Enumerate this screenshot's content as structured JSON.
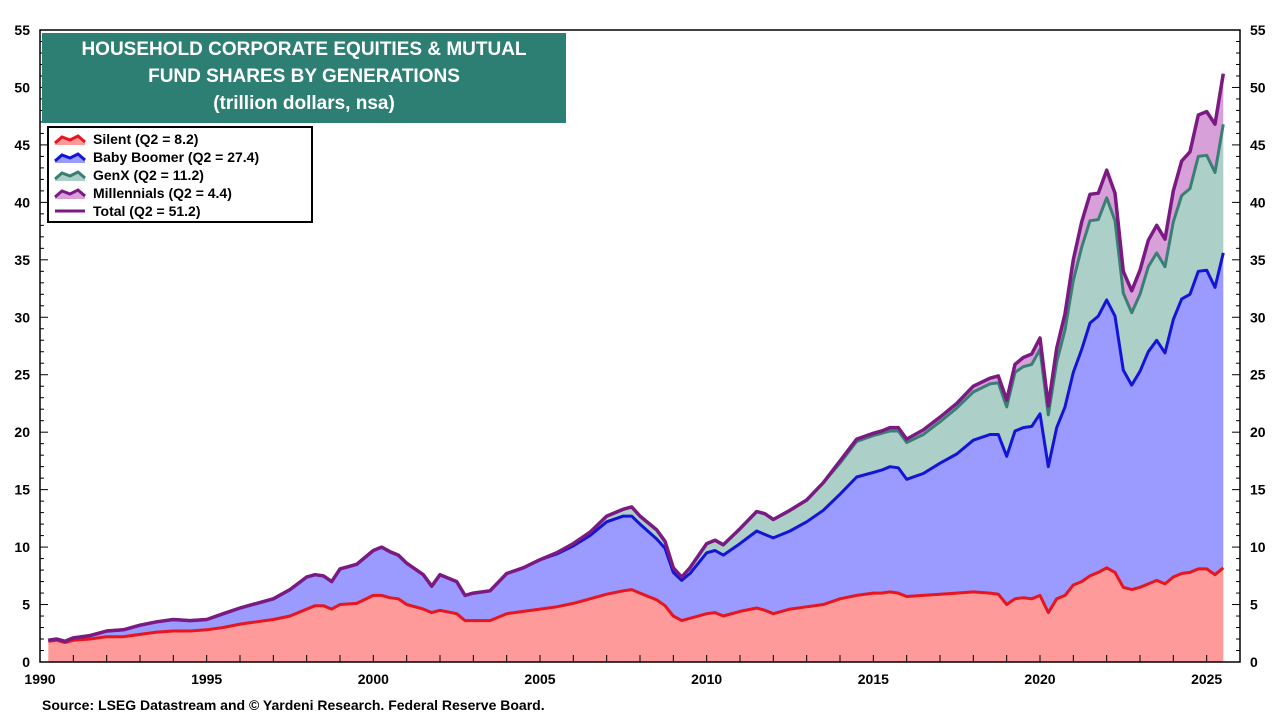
{
  "chart_data": {
    "type": "area",
    "title": "HOUSEHOLD CORPORATE EQUITIES & MUTUAL",
    "title_line2": "FUND SHARES BY GENERATIONS",
    "subtitle": "(trillion dollars, nsa)",
    "source": "Source: LSEG Datastream and © Yardeni Research. Federal Reserve Board.",
    "stacked": true,
    "xlim": [
      1990,
      2026
    ],
    "ylim": [
      0,
      55
    ],
    "x_ticks": [
      "1990",
      "1995",
      "2000",
      "2005",
      "2010",
      "2015",
      "2020",
      "2025"
    ],
    "y_ticks": [
      "0",
      "5",
      "10",
      "15",
      "20",
      "25",
      "30",
      "35",
      "40",
      "45",
      "50",
      "55"
    ],
    "grid": false,
    "legend_position": "top-left",
    "x": [
      1990.25,
      1990.5,
      1990.75,
      1991,
      1991.5,
      1992,
      1992.5,
      1993,
      1993.5,
      1994,
      1994.5,
      1995,
      1995.5,
      1996,
      1996.5,
      1997,
      1997.5,
      1998,
      1998.25,
      1998.5,
      1998.75,
      1999,
      1999.5,
      2000,
      2000.25,
      2000.5,
      2000.75,
      2001,
      2001.5,
      2001.75,
      2002,
      2002.5,
      2002.75,
      2003,
      2003.5,
      2004,
      2004.5,
      2005,
      2005.5,
      2006,
      2006.5,
      2007,
      2007.5,
      2007.75,
      2008,
      2008.5,
      2008.75,
      2009,
      2009.25,
      2009.5,
      2010,
      2010.25,
      2010.5,
      2011,
      2011.5,
      2011.75,
      2012,
      2012.5,
      2013,
      2013.5,
      2014,
      2014.5,
      2015,
      2015.25,
      2015.5,
      2015.75,
      2016,
      2016.5,
      2017,
      2017.5,
      2018,
      2018.5,
      2018.75,
      2019,
      2019.25,
      2019.5,
      2019.75,
      2020,
      2020.25,
      2020.5,
      2020.75,
      2021,
      2021.25,
      2021.5,
      2021.75,
      2022,
      2022.25,
      2022.5,
      2022.75,
      2023,
      2023.25,
      2023.5,
      2023.75,
      2024,
      2024.25,
      2024.5,
      2024.75,
      2025,
      2025.25,
      2025.5
    ],
    "series": [
      {
        "name": "Silent (Q2 = 8.2)",
        "color": "#ff9a9a",
        "line_color": "#e8141e",
        "values": [
          1.8,
          1.9,
          1.7,
          1.9,
          2.0,
          2.2,
          2.2,
          2.4,
          2.6,
          2.7,
          2.7,
          2.8,
          3.0,
          3.3,
          3.5,
          3.7,
          4.0,
          4.6,
          4.9,
          4.9,
          4.6,
          5.0,
          5.1,
          5.8,
          5.8,
          5.6,
          5.5,
          5.0,
          4.6,
          4.3,
          4.5,
          4.2,
          3.6,
          3.6,
          3.6,
          4.2,
          4.4,
          4.6,
          4.8,
          5.1,
          5.5,
          5.9,
          6.2,
          6.3,
          6.0,
          5.4,
          4.9,
          4.0,
          3.6,
          3.8,
          4.2,
          4.3,
          4.0,
          4.4,
          4.7,
          4.5,
          4.2,
          4.6,
          4.8,
          5.0,
          5.5,
          5.8,
          6.0,
          6.0,
          6.1,
          6.0,
          5.7,
          5.8,
          5.9,
          6.0,
          6.1,
          6.0,
          5.9,
          5.0,
          5.5,
          5.6,
          5.5,
          5.8,
          4.3,
          5.5,
          5.8,
          6.7,
          7.0,
          7.5,
          7.8,
          8.2,
          7.8,
          6.5,
          6.3,
          6.5,
          6.8,
          7.1,
          6.8,
          7.4,
          7.7,
          7.8,
          8.1,
          8.1,
          7.6,
          8.2
        ]
      },
      {
        "name": "Baby Boomer (Q2 = 27.4)",
        "color": "#9a9aff",
        "line_color": "#1414d8",
        "values": [
          0.1,
          0.1,
          0.1,
          0.2,
          0.3,
          0.5,
          0.6,
          0.8,
          0.9,
          1.0,
          0.9,
          0.9,
          1.2,
          1.4,
          1.6,
          1.8,
          2.3,
          2.8,
          2.7,
          2.6,
          2.4,
          3.1,
          3.4,
          3.9,
          4.2,
          4.0,
          3.8,
          3.6,
          3.0,
          2.3,
          3.1,
          2.8,
          2.2,
          2.4,
          2.6,
          3.5,
          3.8,
          4.3,
          4.6,
          5.0,
          5.5,
          6.3,
          6.5,
          6.4,
          6.0,
          5.3,
          5.0,
          3.8,
          3.5,
          3.9,
          5.3,
          5.4,
          5.3,
          5.9,
          6.7,
          6.6,
          6.6,
          6.8,
          7.4,
          8.2,
          9.1,
          10.3,
          10.5,
          10.7,
          10.9,
          10.9,
          10.2,
          10.6,
          11.4,
          12.1,
          13.2,
          13.8,
          13.9,
          12.9,
          14.6,
          14.8,
          15.0,
          15.8,
          12.7,
          14.9,
          16.4,
          18.5,
          20.2,
          22.0,
          22.3,
          23.3,
          22.3,
          18.9,
          17.8,
          18.8,
          20.2,
          20.9,
          20.1,
          22.4,
          23.9,
          24.2,
          25.9,
          26.0,
          25.0,
          27.4
        ]
      },
      {
        "name": "GenX (Q2 = 11.2)",
        "color": "#acd0c8",
        "line_color": "#3a7f74",
        "values": [
          0.0,
          0.0,
          0.0,
          0.0,
          0.0,
          0.0,
          0.0,
          0.0,
          0.0,
          0.0,
          0.0,
          0.0,
          0.0,
          0.0,
          0.0,
          0.0,
          0.0,
          0.0,
          0.0,
          0.0,
          0.0,
          0.0,
          0.0,
          0.0,
          0.0,
          0.0,
          0.0,
          0.0,
          0.0,
          0.0,
          0.0,
          0.0,
          0.0,
          0.0,
          0.0,
          0.0,
          0.0,
          0.0,
          0.1,
          0.2,
          0.3,
          0.5,
          0.6,
          0.8,
          0.7,
          0.8,
          0.6,
          0.4,
          0.3,
          0.5,
          0.8,
          0.9,
          0.9,
          1.3,
          1.7,
          1.8,
          1.6,
          1.8,
          1.9,
          2.4,
          2.7,
          3.1,
          3.2,
          3.2,
          3.1,
          3.2,
          3.2,
          3.4,
          3.6,
          4.0,
          4.2,
          4.4,
          4.5,
          4.3,
          5.1,
          5.3,
          5.4,
          5.6,
          4.5,
          5.7,
          6.7,
          8.0,
          8.9,
          8.9,
          8.4,
          8.9,
          8.3,
          6.7,
          6.3,
          6.7,
          7.4,
          7.6,
          7.5,
          8.5,
          9.0,
          9.2,
          10.0,
          10.0,
          10.0,
          11.2
        ]
      },
      {
        "name": "Millennials (Q2 = 4.4)",
        "color": "#d8a0d8",
        "line_color": "#7a1a82",
        "values": [
          0.0,
          0.0,
          0.0,
          0.0,
          0.0,
          0.0,
          0.0,
          0.0,
          0.0,
          0.0,
          0.0,
          0.0,
          0.0,
          0.0,
          0.0,
          0.0,
          0.0,
          0.0,
          0.0,
          0.0,
          0.0,
          0.0,
          0.0,
          0.0,
          0.0,
          0.0,
          0.0,
          0.0,
          0.0,
          0.0,
          0.0,
          0.0,
          0.0,
          0.0,
          0.0,
          0.0,
          0.0,
          0.0,
          0.0,
          0.0,
          0.0,
          0.0,
          0.0,
          0.0,
          0.0,
          0.0,
          0.0,
          0.0,
          0.0,
          0.0,
          0.0,
          0.0,
          0.0,
          0.0,
          0.0,
          0.0,
          0.0,
          0.0,
          0.0,
          0.0,
          0.2,
          0.2,
          0.2,
          0.2,
          0.3,
          0.3,
          0.3,
          0.4,
          0.4,
          0.4,
          0.5,
          0.5,
          0.6,
          0.6,
          0.7,
          0.8,
          0.9,
          1.0,
          0.8,
          1.2,
          1.4,
          1.8,
          2.2,
          2.3,
          2.3,
          2.4,
          2.4,
          1.9,
          1.9,
          2.1,
          2.3,
          2.4,
          2.4,
          2.7,
          3.0,
          3.2,
          3.6,
          3.8,
          4.2,
          4.4
        ]
      }
    ],
    "total": {
      "name": "Total (Q2 = 51.2)",
      "line_color": "#7a1a82"
    }
  }
}
